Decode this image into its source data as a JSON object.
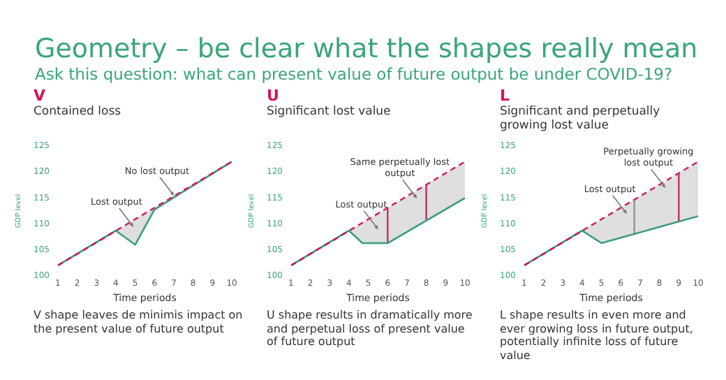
{
  "chart_data": [
    {
      "type": "other",
      "title": "Geometry – be clear what the shapes really mean",
      "subtitle": "Ask this question: what can present value of future output be under COVID-19?"
    },
    {
      "type": "line",
      "title": "V",
      "subtitle": "Contained loss",
      "xlabel": "Time periods",
      "ylabel": "GDP level",
      "xlim": [
        1,
        10
      ],
      "xticks": [
        1,
        2,
        3,
        4,
        5,
        6,
        7,
        8,
        9,
        10
      ],
      "ylim": [
        100,
        125
      ],
      "yticks": [
        100,
        105,
        110,
        115,
        120,
        125
      ],
      "grid": false,
      "marker": "none",
      "series": [
        {
          "color": "#d4145a",
          "line_style": "dashed",
          "x": [
            1,
            10
          ],
          "values": [
            102,
            122
          ]
        },
        {
          "color": "#2a9d7a",
          "line_style": "solid",
          "x": [
            1,
            4,
            5,
            6,
            10
          ],
          "values": [
            102,
            108.7,
            106,
            112.8,
            122
          ],
          "lower": [
            102,
            108.7,
            106,
            112.8,
            122
          ],
          "upper": [
            102,
            108.7,
            110.9,
            113.1,
            122
          ]
        }
      ],
      "annotations": [
        {
          "text": "Lost output",
          "x": 4.9,
          "y": 109.5
        },
        {
          "text": "No lost output",
          "x": 7,
          "y": 115.5
        },
        "V shape leaves de minimis impact on the present value of future output"
      ]
    },
    {
      "type": "line",
      "title": "U",
      "subtitle": "Significant lost value",
      "xlabel": "Time periods",
      "ylabel": "GDP level",
      "xlim": [
        1,
        10
      ],
      "xticks": [
        1,
        2,
        3,
        4,
        5,
        6,
        7,
        8,
        9,
        10
      ],
      "ylim": [
        100,
        125
      ],
      "yticks": [
        100,
        105,
        110,
        115,
        120,
        125
      ],
      "grid": false,
      "marker": "none",
      "series": [
        {
          "color": "#d4145a",
          "line_style": "dashed",
          "x": [
            1,
            10
          ],
          "values": [
            102,
            122
          ]
        },
        {
          "color": "#2a9d7a",
          "line_style": "solid",
          "x": [
            1,
            4,
            4.7,
            6,
            10
          ],
          "values": [
            102,
            108.7,
            106.3,
            106.3,
            115
          ],
          "lower": [
            102,
            108.7,
            106.3,
            106.3,
            115
          ],
          "upper": [
            102,
            108.7,
            110.2,
            113.1,
            122
          ]
        },
        {
          "color": "#d4145a",
          "line_style": "solid",
          "x": [
            6,
            6
          ],
          "values": [
            106.3,
            113.1
          ]
        },
        {
          "color": "#d4145a",
          "line_style": "solid",
          "x": [
            8,
            8
          ],
          "values": [
            110.7,
            117.6
          ]
        }
      ],
      "annotations": [
        {
          "text": "Lost output",
          "x": 5.5,
          "y": 109
        },
        {
          "text": "Same perpetually lost output",
          "x": 7.5,
          "y": 115
        },
        "U shape results in dramatically more and perpetual loss of present value of future output"
      ]
    },
    {
      "type": "line",
      "title": "L",
      "subtitle": "Significant and perpetually growing lost value",
      "xlabel": "Time periods",
      "ylabel": "GDP level",
      "xlim": [
        1,
        10
      ],
      "xticks": [
        1,
        2,
        3,
        4,
        5,
        6,
        7,
        8,
        9,
        10
      ],
      "ylim": [
        100,
        125
      ],
      "yticks": [
        100,
        105,
        110,
        115,
        120,
        125
      ],
      "grid": false,
      "marker": "none",
      "series": [
        {
          "color": "#d4145a",
          "line_style": "dashed",
          "x": [
            1,
            10
          ],
          "values": [
            102,
            122
          ]
        },
        {
          "color": "#2a9d7a",
          "line_style": "solid",
          "x": [
            1,
            4,
            5,
            10
          ],
          "values": [
            102,
            108.7,
            106.3,
            111.5
          ],
          "lower": [
            102,
            108.7,
            106.3,
            111.5
          ],
          "upper": [
            102,
            108.7,
            110.9,
            122
          ]
        },
        {
          "color": "#999999",
          "line_style": "solid",
          "x": [
            6.7,
            6.7
          ],
          "values": [
            107.9,
            114.7
          ]
        },
        {
          "color": "#d4145a",
          "line_style": "solid",
          "x": [
            9,
            9
          ],
          "values": [
            110.5,
            119.8
          ]
        }
      ],
      "annotations": [
        {
          "text": "Lost output",
          "x": 6.3,
          "y": 112
        },
        {
          "text": "Perpetually growing lost output",
          "x": 8.3,
          "y": 117
        },
        "L shape results in even more and ever growing loss in future output, potentially infinite loss of future value"
      ]
    }
  ]
}
